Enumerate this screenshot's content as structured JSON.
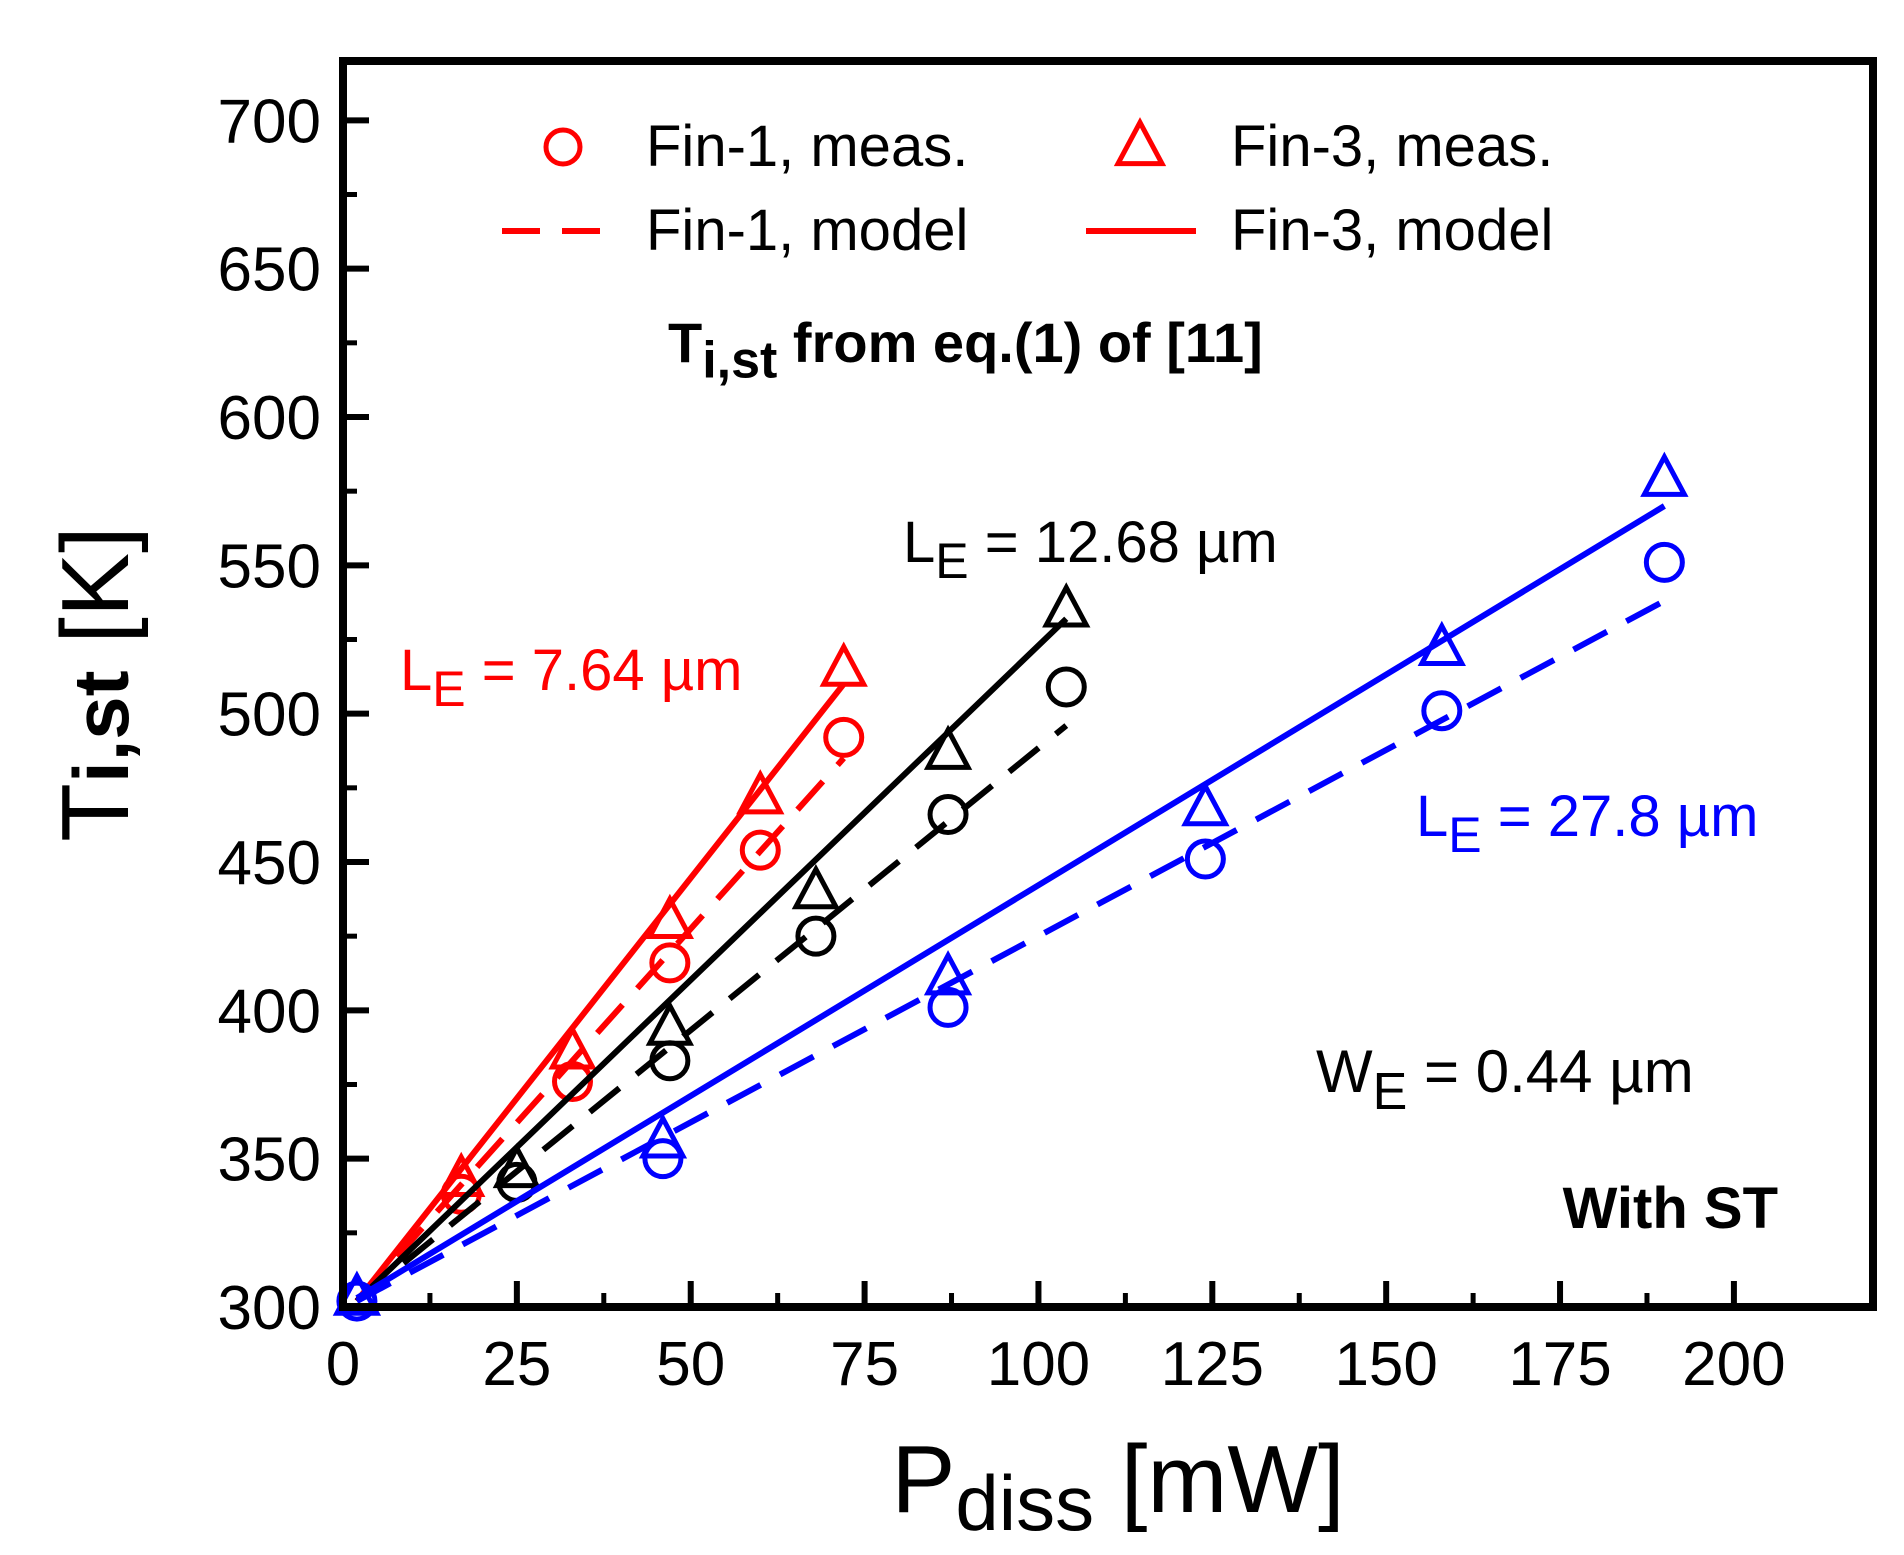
{
  "chart_data": {
    "type": "scatter",
    "title": "",
    "xlabel": {
      "main": "P",
      "sub": "diss",
      "unit": "[mW]"
    },
    "ylabel": {
      "main": "T",
      "sub": "i,st",
      "unit": "[K]"
    },
    "xlim": [
      0,
      220
    ],
    "ylim": [
      300,
      720
    ],
    "xticks": [
      0,
      25,
      50,
      75,
      100,
      125,
      150,
      175,
      200
    ],
    "yticks": [
      300,
      350,
      400,
      450,
      500,
      550,
      600,
      650,
      700
    ],
    "grid": false,
    "legend_placement": "top",
    "legend": [
      {
        "label": "Fin-1, meas.",
        "marker": "circle",
        "line": "none"
      },
      {
        "label": "Fin-3, meas.",
        "marker": "triangle",
        "line": "none"
      },
      {
        "label": "Fin-1, model",
        "marker": "none",
        "line": "dashed"
      },
      {
        "label": "Fin-3, model",
        "marker": "none",
        "line": "solid"
      }
    ],
    "annotations": {
      "method": {
        "main": "T",
        "sub": "i,st",
        "rest": " from eq.(1) of [11]"
      },
      "width": {
        "main": "W",
        "sub": "E",
        "rest": " = 0.44 µm"
      },
      "condition": "With ST"
    },
    "colors": {
      "red": "#ff0000",
      "black": "#000000",
      "blue": "#0000ff"
    },
    "groups": [
      {
        "label": {
          "main": "L",
          "sub": "E",
          "rest": " = 7.64 µm"
        },
        "color": "#ff0000",
        "fin1_meas": {
          "x": [
            17,
            33,
            47,
            60,
            72
          ],
          "y": [
            338,
            376,
            416,
            454,
            492
          ]
        },
        "fin3_meas": {
          "x": [
            17,
            33,
            47,
            60,
            72
          ],
          "y": [
            343,
            386,
            430,
            472,
            515
          ]
        },
        "fin1_model": {
          "x": [
            2,
            72
          ],
          "y": [
            302,
            485
          ]
        },
        "fin3_model": {
          "x": [
            2,
            72
          ],
          "y": [
            302,
            510
          ]
        }
      },
      {
        "label": {
          "main": "L",
          "sub": "E",
          "rest": " = 12.68 µm"
        },
        "color": "#000000",
        "fin1_meas": {
          "x": [
            25,
            47,
            68,
            87,
            104
          ],
          "y": [
            342,
            383,
            425,
            466,
            509
          ]
        },
        "fin3_meas": {
          "x": [
            25,
            47,
            68,
            87,
            104
          ],
          "y": [
            346,
            394,
            440,
            487,
            535
          ]
        },
        "fin1_model": {
          "x": [
            2,
            104
          ],
          "y": [
            302,
            496
          ]
        },
        "fin3_model": {
          "x": [
            2,
            104
          ],
          "y": [
            302,
            532
          ]
        }
      },
      {
        "label": {
          "main": "L",
          "sub": "E",
          "rest": " = 27.8 µm"
        },
        "color": "#0000ff",
        "fin1_meas": {
          "x": [
            2,
            46,
            87,
            124,
            158,
            190
          ],
          "y": [
            302,
            350,
            401,
            451,
            501,
            551
          ]
        },
        "fin3_meas": {
          "x": [
            2,
            46,
            87,
            124,
            158,
            190
          ],
          "y": [
            303,
            356,
            411,
            468,
            522,
            579
          ]
        },
        "fin1_model": {
          "x": [
            2,
            190
          ],
          "y": [
            302,
            538
          ]
        },
        "fin3_model": {
          "x": [
            2,
            190
          ],
          "y": [
            303,
            570
          ]
        }
      }
    ]
  }
}
